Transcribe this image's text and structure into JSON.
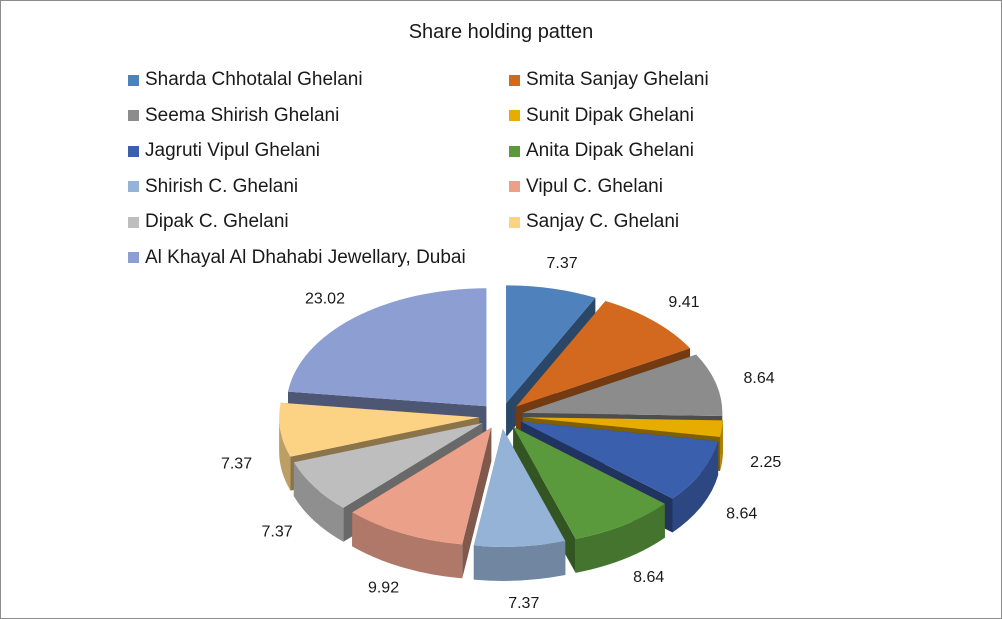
{
  "chart_data": {
    "type": "pie",
    "title": "Share holding patten",
    "exploded": true,
    "three_d": true,
    "legend_position": "top",
    "slices": [
      {
        "label": "Sharda Chhotalal Ghelani",
        "value": 7.37,
        "color": "#4F81BD"
      },
      {
        "label": "Smita Sanjay Ghelani",
        "value": 9.41,
        "color": "#D2691E"
      },
      {
        "label": "Seema Shirish Ghelani",
        "value": 8.64,
        "color": "#8C8C8C"
      },
      {
        "label": "Sunit Dipak Ghelani",
        "value": 2.25,
        "color": "#E6AC00"
      },
      {
        "label": "Jagruti Vipul Ghelani",
        "value": 8.64,
        "color": "#3A5FAD"
      },
      {
        "label": "Anita Dipak Ghelani",
        "value": 8.64,
        "color": "#5B9A3C"
      },
      {
        "label": "Shirish C. Ghelani",
        "value": 7.37,
        "color": "#95B3D7"
      },
      {
        "label": "Vipul C. Ghelani",
        "value": 9.92,
        "color": "#EBA08A"
      },
      {
        "label": "Dipak C. Ghelani",
        "value": 7.37,
        "color": "#BEBEBE"
      },
      {
        "label": "Sanjay C. Ghelani",
        "value": 7.37,
        "color": "#FCD385"
      },
      {
        "label": "Al Khayal Al Dhahabi Jewellary,  Dubai",
        "value": 23.02,
        "color": "#8C9ED2"
      }
    ]
  }
}
